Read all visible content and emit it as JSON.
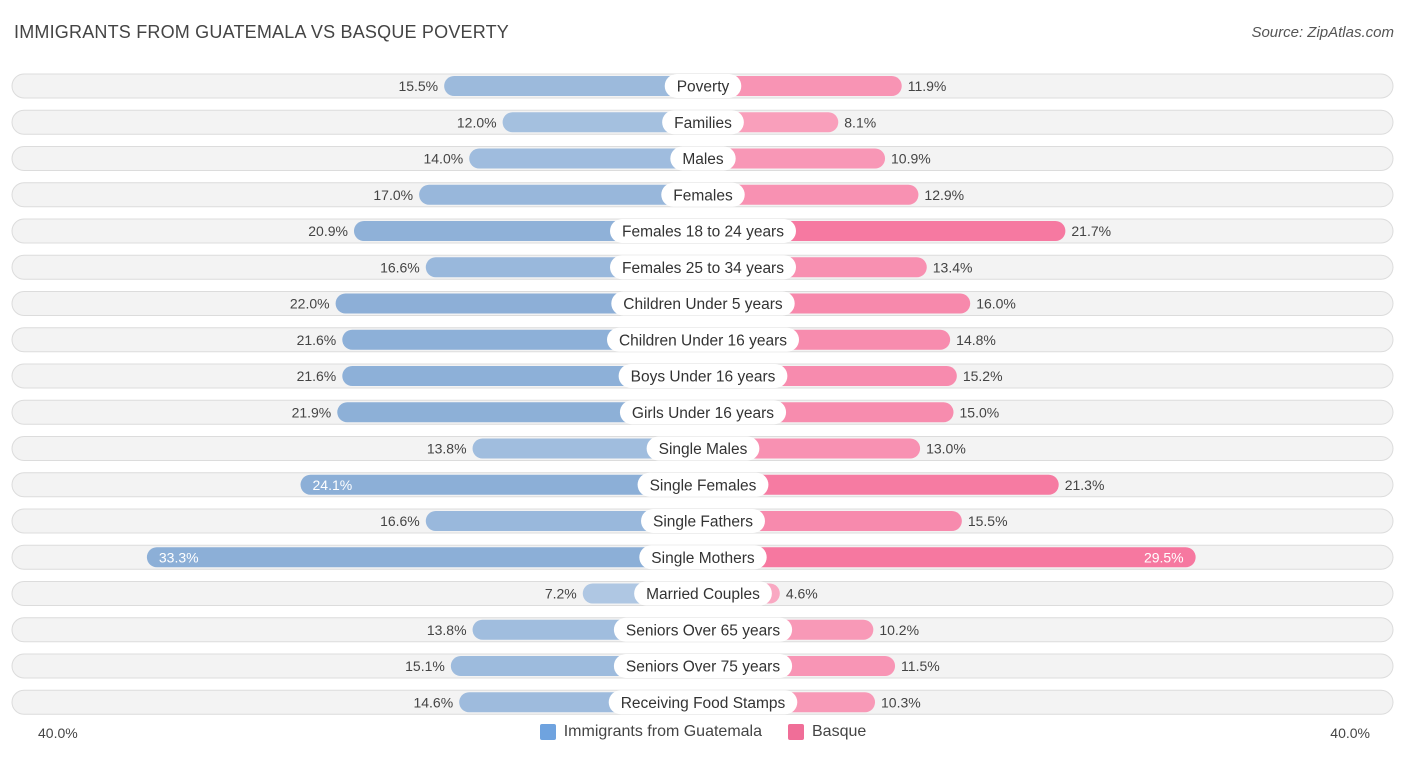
{
  "title": "IMMIGRANTS FROM GUATEMALA VS BASQUE POVERTY",
  "source": "Source: ZipAtlas.com",
  "axis": {
    "left_label": "40.0%",
    "right_label": "40.0%",
    "max": 40
  },
  "legend": [
    {
      "name": "Immigrants from Guatemala",
      "color": "#6fa3df"
    },
    {
      "name": "Basque",
      "color": "#f06e98"
    }
  ],
  "chart_data": {
    "type": "bar",
    "orientation": "diverging-horizontal",
    "unit": "%",
    "xlim": [
      0,
      40
    ],
    "categories": [
      "Poverty",
      "Families",
      "Males",
      "Females",
      "Females 18 to 24 years",
      "Females 25 to 34 years",
      "Children Under 5 years",
      "Children Under 16 years",
      "Boys Under 16 years",
      "Girls Under 16 years",
      "Single Males",
      "Single Females",
      "Single Fathers",
      "Single Mothers",
      "Married Couples",
      "Seniors Over 65 years",
      "Seniors Over 75 years",
      "Receiving Food Stamps"
    ],
    "series": [
      {
        "name": "Immigrants from Guatemala",
        "side": "left",
        "values": [
          15.5,
          12.0,
          14.0,
          17.0,
          20.9,
          16.6,
          22.0,
          21.6,
          21.6,
          21.9,
          13.8,
          24.1,
          16.6,
          33.3,
          7.2,
          13.8,
          15.1,
          14.6
        ],
        "labels": [
          "15.5%",
          "12.0%",
          "14.0%",
          "17.0%",
          "20.9%",
          "16.6%",
          "22.0%",
          "21.6%",
          "21.6%",
          "21.9%",
          "13.8%",
          "24.1%",
          "16.6%",
          "33.3%",
          "7.2%",
          "13.8%",
          "15.1%",
          "14.6%"
        ]
      },
      {
        "name": "Basque",
        "side": "right",
        "values": [
          11.9,
          8.1,
          10.9,
          12.9,
          21.7,
          13.4,
          16.0,
          14.8,
          15.2,
          15.0,
          13.0,
          21.3,
          15.5,
          29.5,
          4.6,
          10.2,
          11.5,
          10.3
        ],
        "labels": [
          "11.9%",
          "8.1%",
          "10.9%",
          "12.9%",
          "21.7%",
          "13.4%",
          "16.0%",
          "14.8%",
          "15.2%",
          "15.0%",
          "13.0%",
          "21.3%",
          "15.5%",
          "29.5%",
          "4.6%",
          "10.2%",
          "11.5%",
          "10.3%"
        ]
      }
    ]
  }
}
